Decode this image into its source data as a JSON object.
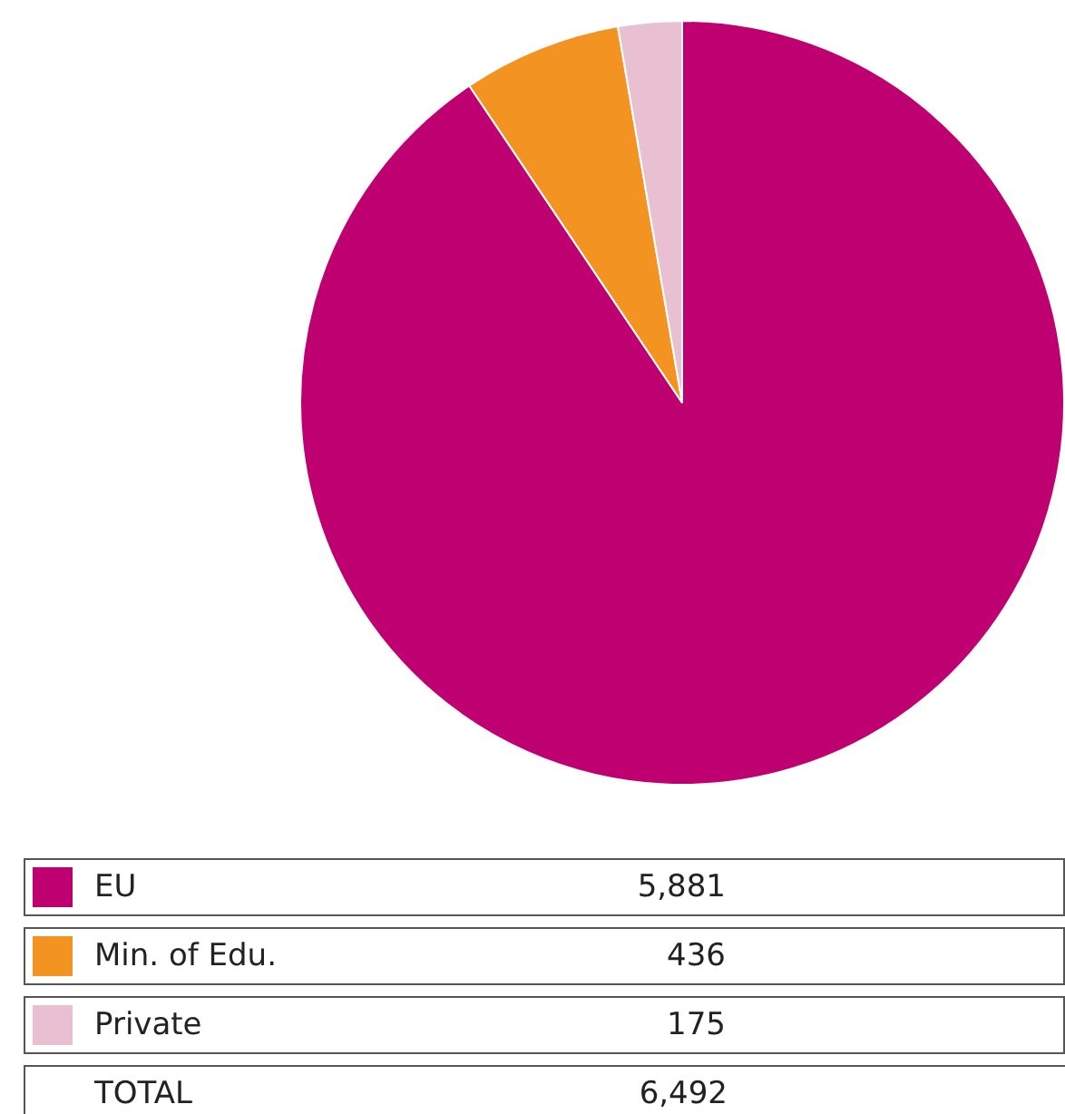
{
  "chart_data": {
    "type": "pie",
    "categories": [
      "EU",
      "Min. of Edu.",
      "Private"
    ],
    "values": [
      5881,
      436,
      175
    ],
    "colors": [
      "#bf0070",
      "#f39322",
      "#e9c0d2"
    ],
    "legend": "bottom",
    "value_labels": [
      "5,881",
      "436",
      "175"
    ],
    "annotations": [
      "TOTAL",
      "6,492"
    ]
  }
}
